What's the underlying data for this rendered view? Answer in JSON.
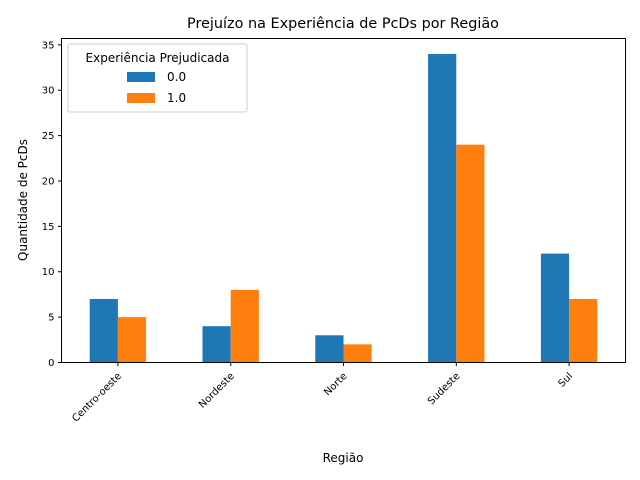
{
  "chart_data": {
    "type": "bar",
    "title": "Prejuízo na Experiência de PcDs por Região",
    "xlabel": "Região",
    "ylabel": "Quantidade de PcDs",
    "categories": [
      "Centro-oeste",
      "Nordeste",
      "Norte",
      "Sudeste",
      "Sul"
    ],
    "series": [
      {
        "name": "0.0",
        "values": [
          7,
          4,
          3,
          34,
          12
        ],
        "color": "#1f77b4"
      },
      {
        "name": "1.0",
        "values": [
          5,
          8,
          2,
          24,
          7
        ],
        "color": "#ff7f0e"
      }
    ],
    "ylim": [
      0,
      35.7
    ],
    "yticks": [
      0,
      5,
      10,
      15,
      20,
      25,
      30,
      35
    ],
    "legend": {
      "title": "Experiência Prejudicada",
      "placement": "top-left"
    },
    "grid": false
  }
}
